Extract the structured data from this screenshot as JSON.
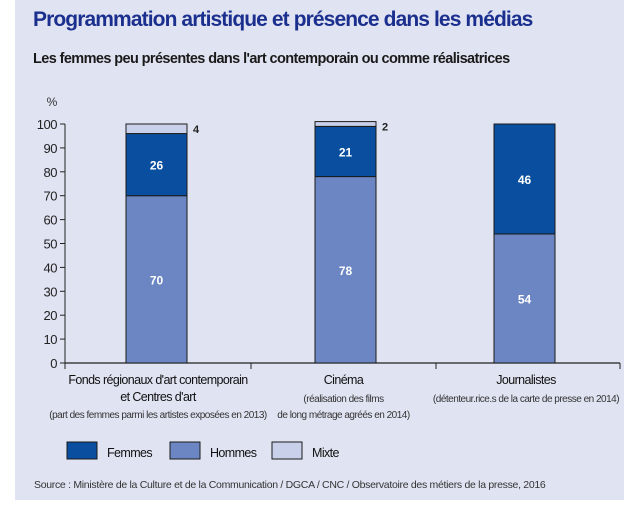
{
  "chart_data": {
    "type": "bar",
    "stacked": true,
    "title": "Programmation artistique et présence dans les médias",
    "subtitle": "Les femmes peu présentes dans l'art contemporain ou comme réalisatrices",
    "ylabel": "%",
    "ylim": [
      0,
      100
    ],
    "yticks": [
      0,
      10,
      20,
      30,
      40,
      50,
      60,
      70,
      80,
      90,
      100
    ],
    "categories": [
      {
        "label": [
          "Fonds régionaux d'art contemporain",
          "et Centres d'art"
        ],
        "note": [
          "(part des femmes parmi les artistes exposées en 2013)"
        ]
      },
      {
        "label": [
          "Cinéma"
        ],
        "note": [
          "(réalisation des films",
          "de long métrage agréés en 2014)"
        ]
      },
      {
        "label": [
          "Journalistes"
        ],
        "note": [
          "(détenteur.rice.s de la carte de presse en 2014)"
        ]
      }
    ],
    "series": [
      {
        "name": "Hommes",
        "color": "#6c86c3",
        "values": [
          70,
          78,
          54
        ]
      },
      {
        "name": "Femmes",
        "color": "#0a4f9f",
        "values": [
          26,
          21,
          46
        ]
      },
      {
        "name": "Mixte",
        "color": "#c9d0ea",
        "values": [
          4,
          2,
          0
        ]
      }
    ],
    "legend": [
      "Femmes",
      "Hommes",
      "Mixte"
    ],
    "legend_position": "bottom-left",
    "grid": false,
    "source": "Source : Ministère de la Culture et de la Communication / DGCA / CNC / Observatoire des métiers de la presse, 2016"
  }
}
